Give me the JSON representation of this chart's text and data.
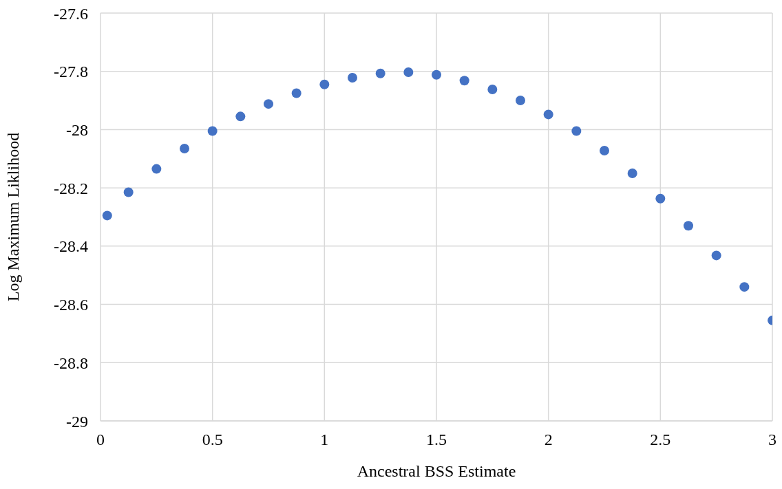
{
  "chart_data": {
    "type": "scatter",
    "xlabel": "Ancestral BSS Estimate",
    "ylabel": "Log Maximum Liklihood",
    "x": [
      0.03,
      0.125,
      0.25,
      0.375,
      0.5,
      0.625,
      0.75,
      0.875,
      1.0,
      1.125,
      1.25,
      1.375,
      1.5,
      1.625,
      1.75,
      1.875,
      2.0,
      2.125,
      2.25,
      2.375,
      2.5,
      2.625,
      2.75,
      2.875,
      3.0
    ],
    "series": [
      {
        "color": "#4472c4",
        "values": [
          -28.295,
          -28.215,
          -28.135,
          -28.065,
          -28.005,
          -27.955,
          -27.912,
          -27.875,
          -27.845,
          -27.822,
          -27.807,
          -27.803,
          -27.812,
          -27.832,
          -27.862,
          -27.9,
          -27.948,
          -28.005,
          -28.072,
          -28.15,
          -28.237,
          -28.33,
          -28.432,
          -28.54,
          -28.655
        ]
      }
    ],
    "xlim": [
      0,
      3
    ],
    "xticks": [
      0,
      0.5,
      1,
      1.5,
      2,
      2.5,
      3
    ],
    "ylim": [
      -29,
      -27.6
    ],
    "yticks": [
      -29,
      -28.8,
      -28.6,
      -28.4,
      -28.2,
      -28,
      -27.8,
      -27.6
    ],
    "grid": true,
    "marker": "circle",
    "legend": false
  }
}
